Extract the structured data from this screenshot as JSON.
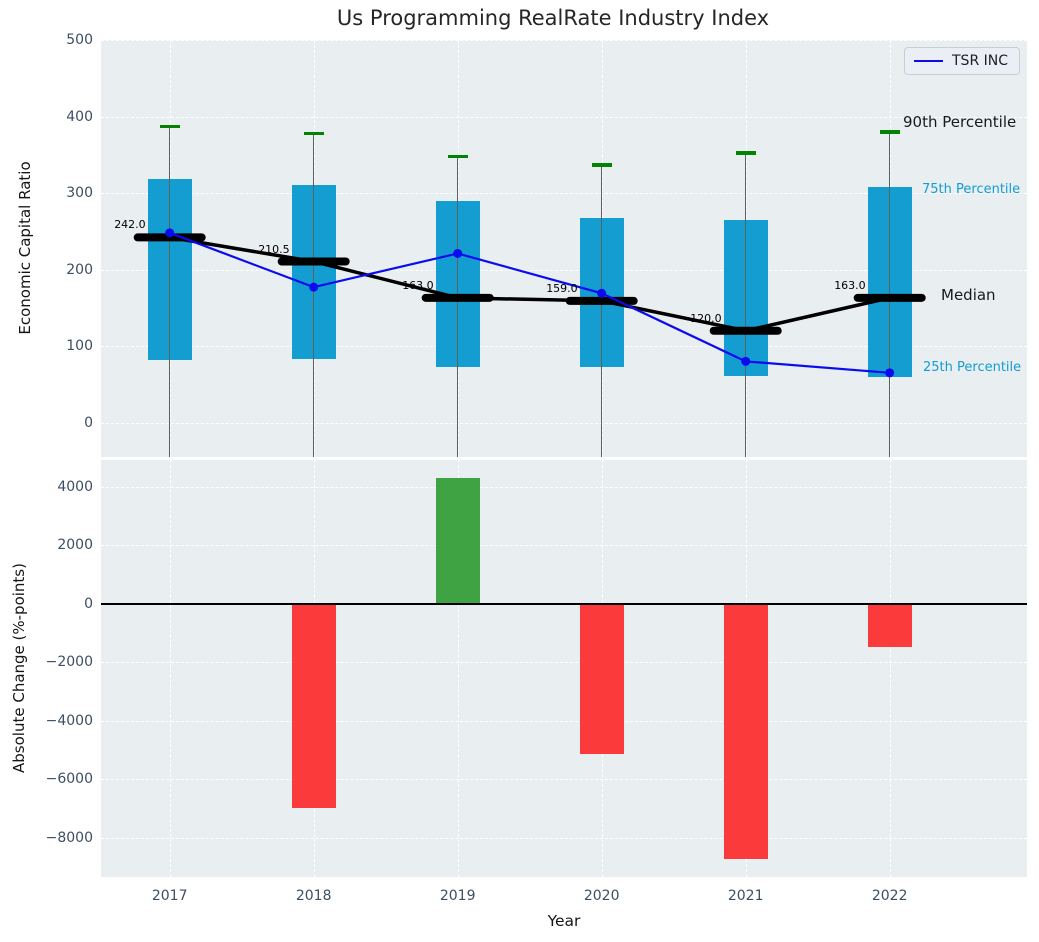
{
  "title": "Us Programming RealRate Industry Index",
  "legend": {
    "label": "TSR INC"
  },
  "axes": {
    "top_ylabel": "Economic Capital Ratio",
    "bottom_ylabel": "Absolute Change (%-points)",
    "xlabel": "Year"
  },
  "colors": {
    "plot_bg": "#e9eef0",
    "box_fill": "#149dd1",
    "cap_green": "#048204",
    "whisker": "#5f5f5f",
    "median_line": "#000000",
    "tsr_line": "#0b0bf0",
    "bar_positive": "#3fa344",
    "bar_negative": "#fb3b3b",
    "tick_text": "#3e4e63",
    "grid": "#ffffff"
  },
  "chart_data": [
    {
      "type": "box-line",
      "title": "Us Programming RealRate Industry Index",
      "ylabel": "Economic Capital Ratio",
      "ylim": [
        -45,
        500
      ],
      "yticks": [
        500,
        400,
        300,
        200,
        100,
        0
      ],
      "grid": true,
      "legend_position": "upper right",
      "categories": [
        "2017",
        "2018",
        "2019",
        "2020",
        "2021",
        "2022"
      ],
      "series": [
        {
          "name": "90th Percentile",
          "values": [
            387,
            378,
            348,
            337,
            352,
            380
          ]
        },
        {
          "name": "75th Percentile",
          "values": [
            318,
            310,
            290,
            267,
            265,
            308
          ]
        },
        {
          "name": "Median",
          "values": [
            242.0,
            210.5,
            163.0,
            159.0,
            120.0,
            163.0
          ]
        },
        {
          "name": "25th Percentile",
          "values": [
            82,
            83,
            72,
            72,
            61,
            59
          ]
        },
        {
          "name": "TSR INC",
          "values": [
            248,
            177,
            221,
            169,
            80,
            65
          ]
        }
      ],
      "median_labels": [
        "242.0",
        "210.5",
        "163.0",
        "159.0",
        "120.0",
        "163.0"
      ],
      "right_labels": [
        {
          "text": "90th Percentile",
          "value": 391,
          "x": 802,
          "cls": "big"
        },
        {
          "text": "75th Percentile",
          "value": 302,
          "x": 821,
          "cls": "small"
        },
        {
          "text": "Median",
          "value": 165,
          "x": 840,
          "cls": "big"
        },
        {
          "text": "25th Percentile",
          "value": 69,
          "x": 822,
          "cls": "small"
        }
      ]
    },
    {
      "type": "bar",
      "ylabel": "Absolute Change (%-points)",
      "xlabel": "Year",
      "ylim": [
        -9350,
        4920
      ],
      "yticks": [
        4000,
        2000,
        0,
        -2000,
        -4000,
        -6000,
        -8000
      ],
      "grid": true,
      "categories": [
        "2017",
        "2018",
        "2019",
        "2020",
        "2021",
        "2022"
      ],
      "values": [
        null,
        -6980,
        4310,
        -5130,
        -8750,
        -1470
      ]
    }
  ]
}
